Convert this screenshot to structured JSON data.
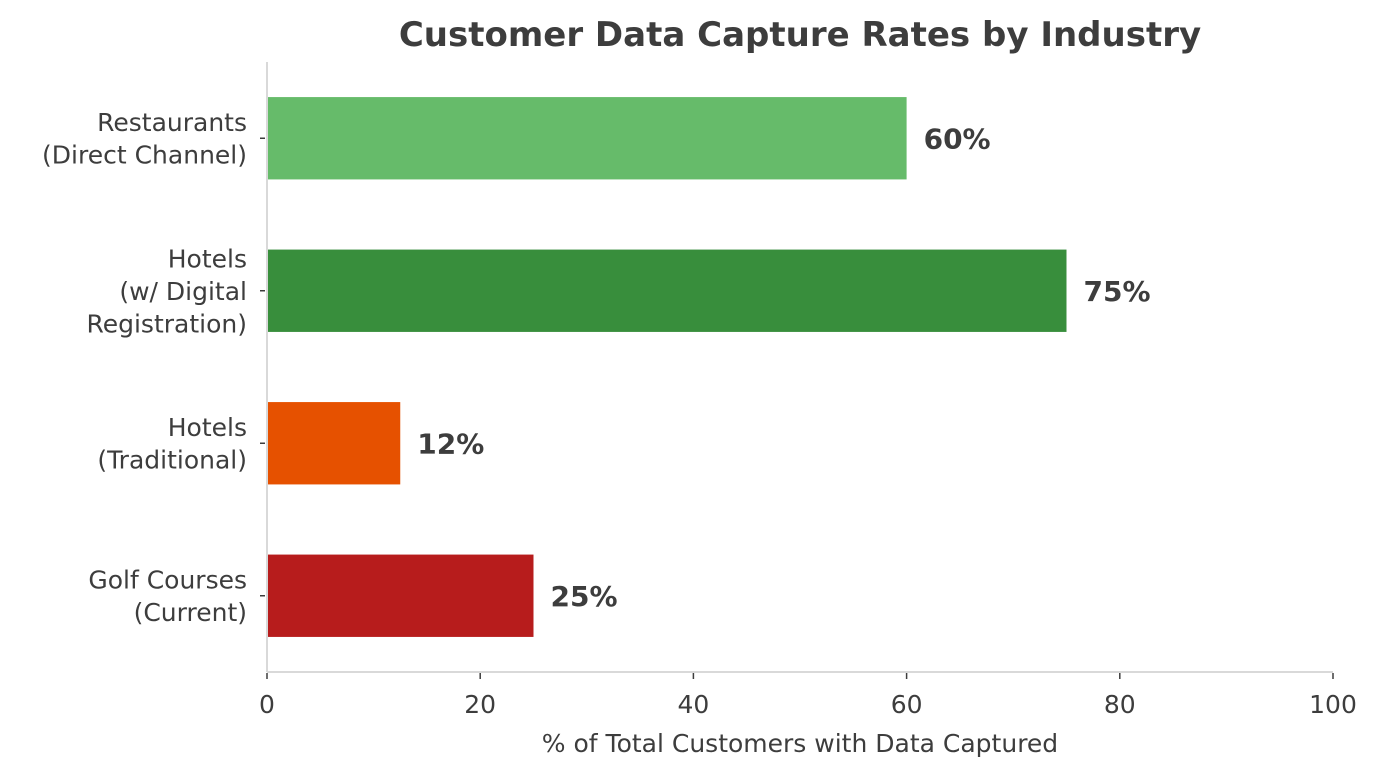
{
  "chart_data": {
    "type": "bar",
    "orientation": "horizontal",
    "title": "Customer Data Capture Rates by Industry",
    "xlabel": "% of Total Customers with Data Captured",
    "ylabel": "",
    "xlim": [
      0,
      100
    ],
    "xticks": [
      "0",
      "20",
      "40",
      "60",
      "80",
      "100"
    ],
    "categories": [
      [
        "Restaurants",
        "(Direct Channel)"
      ],
      [
        "Hotels",
        "(w/ Digital",
        "Registration)"
      ],
      [
        "Hotels",
        "(Traditional)"
      ],
      [
        "Golf Courses",
        "(Current)"
      ]
    ],
    "values": [
      60,
      75,
      12.5,
      25
    ],
    "data_labels": [
      "60%",
      "75%",
      "12%",
      "25%"
    ],
    "colors": [
      "#66bb6a",
      "#388e3c",
      "#e65100",
      "#b71c1c"
    ],
    "grid": false,
    "legend": "none"
  }
}
